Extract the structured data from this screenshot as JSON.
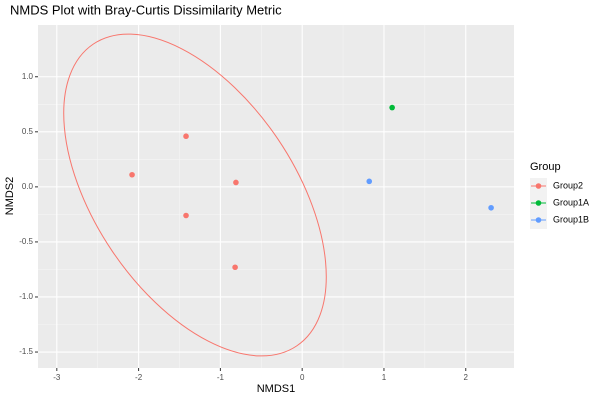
{
  "chart_data": {
    "type": "scatter",
    "title": "NMDS Plot with Bray-Curtis Dissimilarity Metric",
    "x_label": "NMDS1",
    "y_label": "NMDS2",
    "legend_title": "Group",
    "xlim": [
      -3.23,
      2.59
    ],
    "ylim": [
      -1.645,
      1.47
    ],
    "xticks": [
      -3,
      -2,
      -1,
      0,
      1,
      2
    ],
    "yticks": [
      {
        "value": 1.0,
        "label": "1.0"
      },
      {
        "value": 0.5,
        "label": "0.5"
      },
      {
        "value": 0,
        "label": "0.0"
      },
      {
        "value": -0.5,
        "label": "-0.5"
      },
      {
        "value": -1.0,
        "label": "-1.0"
      },
      {
        "value": -1.5,
        "label": "-1.5"
      }
    ],
    "grid": true,
    "legend": "right",
    "series": [
      {
        "name": "Group2",
        "color": "#F8766D",
        "x": [
          -1.42,
          -2.08,
          -0.81,
          -1.42,
          -0.82
        ],
        "y": [
          0.46,
          0.11,
          0.04,
          -0.26,
          -0.73
        ]
      },
      {
        "name": "Group1A",
        "color": "#00BA38",
        "x": [
          1.1
        ],
        "y": [
          0.72
        ]
      },
      {
        "name": "Group1B",
        "color": "#619CFF",
        "x": [
          0.82,
          2.31
        ],
        "y": [
          0.05,
          -0.19
        ]
      }
    ]
  }
}
